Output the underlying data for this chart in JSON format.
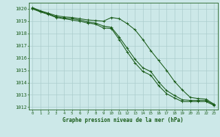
{
  "xlabel": "Graphe pression niveau de la mer (hPa)",
  "background_color": "#cce8e8",
  "grid_color": "#aacccc",
  "line_color": "#1a5c1a",
  "ylim": [
    1011.8,
    1020.5
  ],
  "xlim": [
    -0.5,
    23.5
  ],
  "xticks": [
    0,
    1,
    2,
    3,
    4,
    5,
    6,
    7,
    8,
    9,
    10,
    11,
    12,
    13,
    14,
    15,
    16,
    17,
    18,
    19,
    20,
    21,
    22,
    23
  ],
  "yticks": [
    1012,
    1013,
    1014,
    1015,
    1016,
    1017,
    1018,
    1019,
    1020
  ],
  "series": [
    {
      "x": [
        0,
        1,
        2,
        3,
        4,
        5,
        6,
        7,
        8,
        9,
        10,
        11,
        12,
        13,
        14,
        15,
        16,
        17,
        18,
        19,
        20,
        21,
        22,
        23
      ],
      "y": [
        1020.1,
        1019.85,
        1019.65,
        1019.45,
        1019.35,
        1019.3,
        1019.2,
        1019.1,
        1019.05,
        1019.0,
        1019.3,
        1019.2,
        1018.8,
        1018.3,
        1017.5,
        1016.6,
        1015.8,
        1015.0,
        1014.1,
        1013.4,
        1012.8,
        1012.7,
        1012.65,
        1012.25
      ],
      "marker": "+"
    },
    {
      "x": [
        0,
        1,
        2,
        3,
        4,
        5,
        6,
        7,
        8,
        9,
        10,
        11,
        12,
        13,
        14,
        15,
        16,
        17,
        18,
        19,
        20,
        21,
        22,
        23
      ],
      "y": [
        1020.05,
        1019.8,
        1019.6,
        1019.35,
        1019.25,
        1019.2,
        1019.1,
        1018.95,
        1018.85,
        1018.6,
        1018.5,
        1017.7,
        1016.8,
        1015.9,
        1015.2,
        1014.9,
        1014.05,
        1013.35,
        1012.95,
        1012.6,
        1012.55,
        1012.55,
        1012.55,
        1012.2
      ],
      "marker": "+"
    },
    {
      "x": [
        0,
        1,
        2,
        3,
        4,
        5,
        6,
        7,
        8,
        9,
        10,
        11,
        12,
        13,
        14,
        15,
        16,
        17,
        18,
        19,
        20,
        21,
        22,
        23
      ],
      "y": [
        1020.0,
        1019.75,
        1019.55,
        1019.3,
        1019.2,
        1019.1,
        1019.0,
        1018.85,
        1018.75,
        1018.45,
        1018.4,
        1017.5,
        1016.5,
        1015.6,
        1014.9,
        1014.6,
        1013.75,
        1013.1,
        1012.75,
        1012.45,
        1012.45,
        1012.45,
        1012.45,
        1012.15
      ],
      "marker": "+"
    }
  ]
}
